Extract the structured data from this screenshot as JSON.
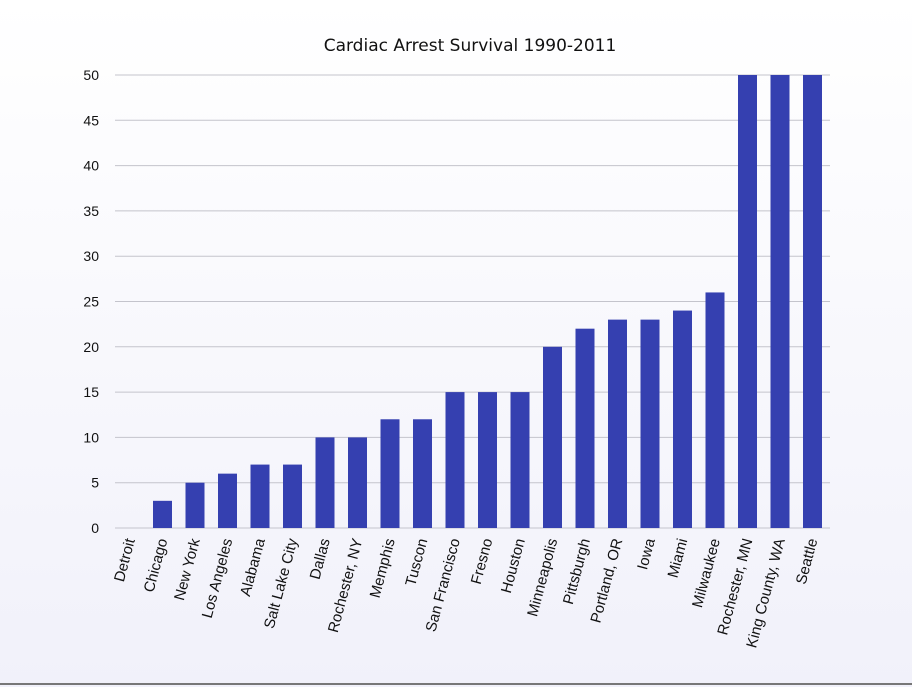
{
  "chart_data": {
    "type": "bar",
    "title": "Cardiac Arrest Survival 1990-2011",
    "xlabel": "",
    "ylabel": "",
    "ylim": [
      0,
      50
    ],
    "yticks": [
      0,
      5,
      10,
      15,
      20,
      25,
      30,
      35,
      40,
      45,
      50
    ],
    "grid": true,
    "bar_color": "#3540b0",
    "categories": [
      "Detroit",
      "Chicago",
      "New York",
      "Los Angeles",
      "Alabama",
      "Salt Lake City",
      "Dallas",
      "Rochester, NY",
      "Memphis",
      "Tuscon",
      "San Francisco",
      "Fresno",
      "Houston",
      "Minneapolis",
      "Pittsburgh",
      "Portland, OR",
      "Iowa",
      "Miami",
      "Milwaukee",
      "Rochester, MN",
      "King County, WA",
      "Seattle"
    ],
    "values": [
      0,
      3,
      5,
      6,
      7,
      7,
      10,
      10,
      12,
      12,
      15,
      15,
      15,
      20,
      22,
      23,
      23,
      24,
      26,
      50,
      50,
      50
    ]
  }
}
